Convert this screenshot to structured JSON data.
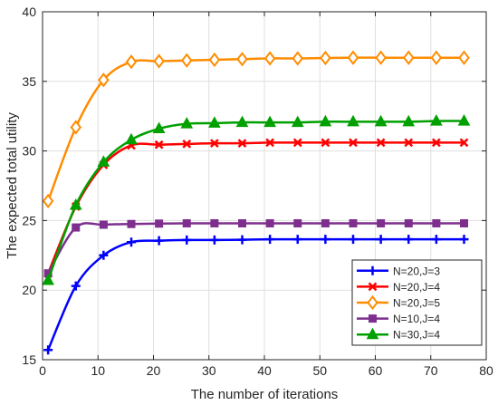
{
  "chart_data": {
    "type": "line",
    "xlabel": "The number of iterations",
    "ylabel": "The expected total utility",
    "xlim": [
      0,
      80
    ],
    "ylim": [
      15,
      40
    ],
    "xticks": [
      0,
      10,
      20,
      30,
      40,
      50,
      60,
      70,
      80
    ],
    "yticks": [
      15,
      20,
      25,
      30,
      35,
      40
    ],
    "grid": true,
    "legend_position": "lower-right",
    "x": [
      1,
      6,
      11,
      16,
      21,
      26,
      31,
      36,
      41,
      46,
      51,
      56,
      61,
      66,
      71,
      76
    ],
    "series": [
      {
        "name": "N=20,J=3",
        "color": "#0000ff",
        "marker": "plus",
        "values": [
          15.7,
          20.3,
          22.5,
          23.45,
          23.55,
          23.6,
          23.6,
          23.62,
          23.65,
          23.65,
          23.65,
          23.65,
          23.65,
          23.65,
          23.65,
          23.65
        ]
      },
      {
        "name": "N=20,J=4",
        "color": "#ff0000",
        "marker": "x",
        "values": [
          21.2,
          26.0,
          29.0,
          30.4,
          30.45,
          30.5,
          30.55,
          30.55,
          30.6,
          30.6,
          30.6,
          30.6,
          30.6,
          30.6,
          30.6,
          30.6
        ]
      },
      {
        "name": "N=20,J=5",
        "color": "#ff8c00",
        "marker": "diamond",
        "values": [
          26.4,
          31.7,
          35.1,
          36.4,
          36.45,
          36.5,
          36.55,
          36.6,
          36.65,
          36.65,
          36.68,
          36.7,
          36.7,
          36.7,
          36.7,
          36.7
        ]
      },
      {
        "name": "N=10,J=4",
        "color": "#7e2f8e",
        "marker": "square",
        "values": [
          21.2,
          24.5,
          24.7,
          24.75,
          24.78,
          24.8,
          24.8,
          24.8,
          24.8,
          24.8,
          24.8,
          24.8,
          24.8,
          24.8,
          24.8,
          24.8
        ]
      },
      {
        "name": "N=30,J=4",
        "color": "#00a000",
        "marker": "triangle",
        "values": [
          20.7,
          26.1,
          29.2,
          30.8,
          31.6,
          31.95,
          32.0,
          32.05,
          32.05,
          32.05,
          32.1,
          32.1,
          32.1,
          32.1,
          32.15,
          32.15
        ]
      }
    ]
  }
}
